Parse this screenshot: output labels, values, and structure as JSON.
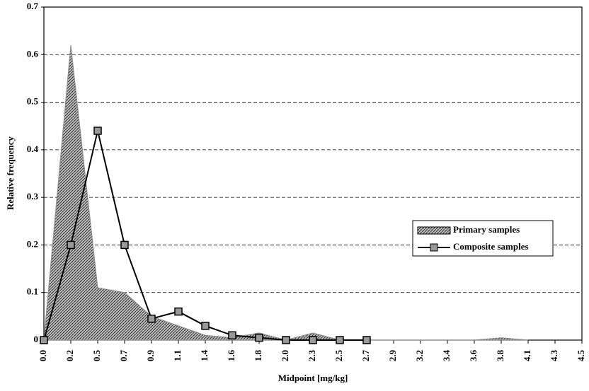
{
  "chart_data": {
    "type": "area-line",
    "x_label": "Midpoint [mg/kg]",
    "y_label": "Relative frequency",
    "categories": [
      "0.0",
      "0.2",
      "0.5",
      "0.7",
      "0.9",
      "1.1",
      "1.4",
      "1.6",
      "1.8",
      "2.0",
      "2.3",
      "2.5",
      "2.7",
      "2.9",
      "3.2",
      "3.4",
      "3.6",
      "3.8",
      "4.1",
      "4.3",
      "4.5"
    ],
    "series": [
      {
        "name": "Primary samples",
        "kind": "area",
        "color": "#8a8a8a",
        "values": [
          0,
          0.62,
          0.11,
          0.1,
          0.05,
          0.03,
          0.01,
          0.005,
          0.015,
          0,
          0.015,
          0,
          0,
          0,
          0,
          0,
          0,
          0.005,
          0,
          null,
          null
        ]
      },
      {
        "name": "Composite samples",
        "kind": "line",
        "color": "#000000",
        "values": [
          0,
          0.2,
          0.44,
          0.2,
          0.045,
          0.06,
          0.03,
          0.01,
          0.005,
          0,
          0,
          0,
          0,
          null,
          null,
          null,
          null,
          null,
          null,
          null,
          null
        ]
      }
    ],
    "ylim": [
      0,
      0.7
    ],
    "yticks": [
      0,
      0.1,
      0.2,
      0.3,
      0.4,
      0.5,
      0.6,
      0.7
    ],
    "grid": true
  }
}
